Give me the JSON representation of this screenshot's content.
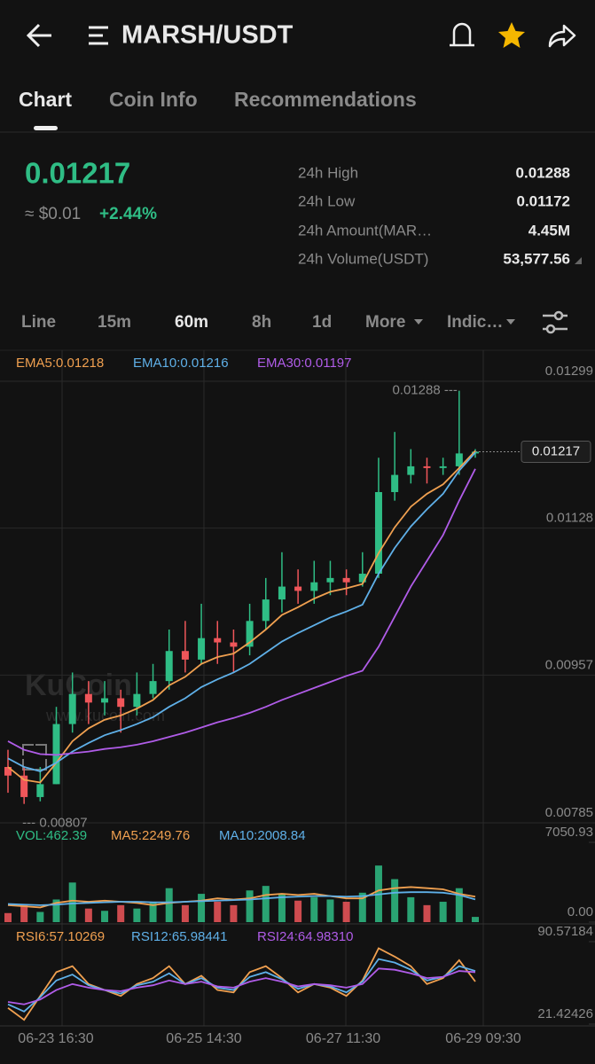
{
  "header": {
    "title": "MARSH/USDT"
  },
  "tabs": [
    "Chart",
    "Coin Info",
    "Recommendations"
  ],
  "ticker": {
    "price": "0.01217",
    "fiat": "≈ $0.01",
    "change": "+2.44%",
    "stats": [
      {
        "label": "24h High",
        "value": "0.01288"
      },
      {
        "label": "24h Low",
        "value": "0.01172"
      },
      {
        "label": "24h Amount(MAR…",
        "value": "4.45M"
      },
      {
        "label": "24h Volume(USDT)",
        "value": "53,577.56"
      }
    ]
  },
  "intervals": [
    "Line",
    "15m",
    "60m",
    "8h",
    "1d",
    "More",
    "Indic…"
  ],
  "watermark": [
    "KuCoin",
    "www.kucoin.com"
  ],
  "time_labels": [
    "06-23 16:30",
    "06-25 14:30",
    "06-27 11:30",
    "06-29 09:30"
  ],
  "chart_data": [
    {
      "type": "candlestick",
      "ylim": [
        0.00785,
        0.01299
      ],
      "yticks": [
        0.01299,
        0.01128,
        0.00957,
        0.00785
      ],
      "grid": true,
      "up_color": "#2fbd85",
      "down_color": "#f0565a",
      "high_label": "0.01288 ---",
      "low_label": "--- 0.00807",
      "last_price_label": "0.01217",
      "ohlc": [
        [
          0.0085,
          0.0087,
          0.0082,
          0.0084
        ],
        [
          0.0084,
          0.0085,
          0.00807,
          0.00815
        ],
        [
          0.00815,
          0.0085,
          0.0081,
          0.0083
        ],
        [
          0.0083,
          0.0092,
          0.0083,
          0.009
        ],
        [
          0.009,
          0.0096,
          0.0089,
          0.00935
        ],
        [
          0.00935,
          0.0095,
          0.009,
          0.00925
        ],
        [
          0.00925,
          0.0095,
          0.0091,
          0.0093
        ],
        [
          0.0093,
          0.0094,
          0.0089,
          0.0092
        ],
        [
          0.0092,
          0.0096,
          0.0091,
          0.00935
        ],
        [
          0.00935,
          0.0097,
          0.0093,
          0.0095
        ],
        [
          0.0095,
          0.0101,
          0.0094,
          0.00985
        ],
        [
          0.00985,
          0.0102,
          0.0096,
          0.00975
        ],
        [
          0.00975,
          0.0104,
          0.0097,
          0.01
        ],
        [
          0.01,
          0.0102,
          0.0097,
          0.00995
        ],
        [
          0.00995,
          0.0101,
          0.0096,
          0.0099
        ],
        [
          0.0099,
          0.0104,
          0.0098,
          0.0102
        ],
        [
          0.0102,
          0.0107,
          0.0101,
          0.01045
        ],
        [
          0.01045,
          0.011,
          0.0103,
          0.0106
        ],
        [
          0.0106,
          0.0108,
          0.0104,
          0.01055
        ],
        [
          0.01055,
          0.0109,
          0.0104,
          0.01065
        ],
        [
          0.01065,
          0.0109,
          0.0105,
          0.0107
        ],
        [
          0.0107,
          0.0108,
          0.0105,
          0.01065
        ],
        [
          0.01065,
          0.011,
          0.0106,
          0.01075
        ],
        [
          0.01075,
          0.0121,
          0.0107,
          0.0117
        ],
        [
          0.0117,
          0.0124,
          0.0116,
          0.0119
        ],
        [
          0.0119,
          0.0122,
          0.0118,
          0.012
        ],
        [
          0.012,
          0.0121,
          0.0118,
          0.01198
        ],
        [
          0.01198,
          0.0121,
          0.0119,
          0.012
        ],
        [
          0.012,
          0.01288,
          0.0119,
          0.01215
        ],
        [
          0.01215,
          0.0122,
          0.0121,
          0.01217
        ]
      ],
      "series": [
        {
          "name": "EMA5:0.01218",
          "color": "#f0a050",
          "values": [
            0.0085,
            0.00835,
            0.00832,
            0.00855,
            0.0088,
            0.00895,
            0.00905,
            0.0091,
            0.00918,
            0.00928,
            0.00945,
            0.00955,
            0.0097,
            0.00978,
            0.00982,
            0.00995,
            0.0101,
            0.01027,
            0.01036,
            0.01046,
            0.01054,
            0.01058,
            0.01063,
            0.01099,
            0.01129,
            0.01153,
            0.01168,
            0.01179,
            0.01198,
            0.01218
          ]
        },
        {
          "name": "EMA10:0.01216",
          "color": "#5fb0e8",
          "values": [
            0.0086,
            0.0085,
            0.00845,
            0.00855,
            0.00868,
            0.00878,
            0.00887,
            0.00893,
            0.009,
            0.00908,
            0.0092,
            0.0093,
            0.00943,
            0.00952,
            0.0096,
            0.0097,
            0.00983,
            0.00996,
            0.01006,
            0.01015,
            0.01024,
            0.01031,
            0.01039,
            0.01075,
            0.01105,
            0.0113,
            0.0115,
            0.01168,
            0.01195,
            0.01216
          ]
        },
        {
          "name": "EMA30:0.01197",
          "color": "#b05ce8",
          "values": [
            0.0088,
            0.0087,
            0.00865,
            0.00864,
            0.00866,
            0.00868,
            0.00871,
            0.00873,
            0.00876,
            0.0088,
            0.00885,
            0.0089,
            0.00896,
            0.00902,
            0.00907,
            0.00913,
            0.0092,
            0.00928,
            0.00935,
            0.00942,
            0.00949,
            0.00956,
            0.00962,
            0.0099,
            0.01025,
            0.0106,
            0.0109,
            0.0112,
            0.0116,
            0.01197
          ]
        }
      ]
    },
    {
      "type": "bar",
      "ylim": [
        0,
        7050.93
      ],
      "yticks": [
        7050.93,
        {
          "value": 0,
          "label": "0.00"
        }
      ],
      "series": [
        {
          "name": "VOL:462.39",
          "color": "#2fbd85",
          "values": [
            800,
            1500,
            900,
            2000,
            3500,
            1200,
            1000,
            1500,
            1200,
            1800,
            3000,
            1500,
            2500,
            1800,
            1500,
            2800,
            3200,
            2500,
            1900,
            2200,
            2000,
            1800,
            2600,
            5000,
            3800,
            2200,
            1500,
            1800,
            3000,
            462.39
          ]
        },
        {
          "name": "MA5:2249.76",
          "color": "#f0a050",
          "values": [
            1500,
            1400,
            1300,
            1700,
            1900,
            1800,
            1900,
            1800,
            1700,
            1500,
            1700,
            1800,
            1900,
            2100,
            2000,
            2100,
            2400,
            2500,
            2400,
            2500,
            2300,
            2100,
            2100,
            2800,
            3000,
            3100,
            3000,
            2900,
            2500,
            2249.76
          ]
        },
        {
          "name": "MA10:2008.84",
          "color": "#5fb0e8",
          "values": [
            1600,
            1550,
            1500,
            1550,
            1650,
            1700,
            1750,
            1800,
            1800,
            1750,
            1750,
            1800,
            1850,
            1900,
            1950,
            2000,
            2100,
            2200,
            2250,
            2300,
            2300,
            2250,
            2300,
            2450,
            2600,
            2650,
            2650,
            2600,
            2400,
            2008.84
          ]
        }
      ]
    },
    {
      "type": "line",
      "ylim": [
        21.42426,
        90.57184
      ],
      "yticks": [
        90.57184,
        21.42426
      ],
      "series": [
        {
          "name": "RSI6:57.10269",
          "color": "#f0a050",
          "values": [
            35,
            25,
            45,
            65,
            70,
            55,
            50,
            45,
            55,
            60,
            70,
            55,
            62,
            50,
            48,
            65,
            70,
            60,
            48,
            55,
            52,
            45,
            58,
            85,
            78,
            70,
            55,
            60,
            75,
            57.10269
          ]
        },
        {
          "name": "RSI12:65.98441",
          "color": "#5fb0e8",
          "values": [
            38,
            32,
            44,
            58,
            63,
            54,
            50,
            47,
            54,
            57,
            64,
            55,
            60,
            52,
            50,
            61,
            65,
            59,
            51,
            55,
            53,
            48,
            57,
            76,
            73,
            67,
            58,
            61,
            70,
            65.98441
          ]
        },
        {
          "name": "RSI24:64.98310",
          "color": "#b05ce8",
          "values": [
            40,
            38,
            42,
            50,
            55,
            52,
            50,
            49,
            52,
            54,
            58,
            55,
            57,
            53,
            52,
            57,
            60,
            57,
            53,
            55,
            54,
            52,
            55,
            68,
            67,
            64,
            60,
            61,
            66,
            64.9831
          ]
        }
      ]
    }
  ]
}
